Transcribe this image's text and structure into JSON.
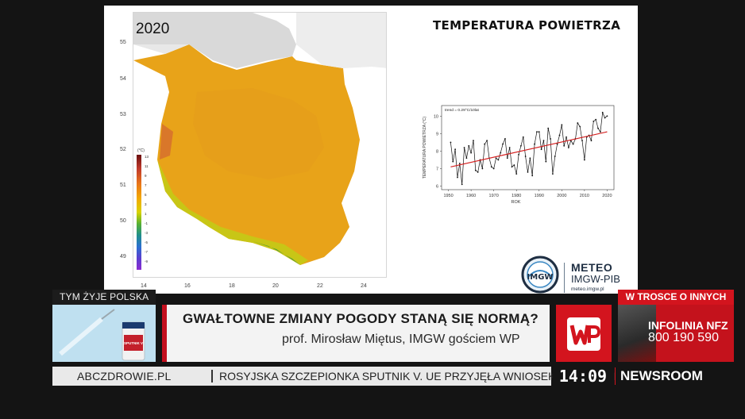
{
  "slide": {
    "title": "TEMPERATURA POWIETRZA",
    "map_year": "2020",
    "lat_labels": [
      "55",
      "54",
      "53",
      "52",
      "51",
      "50",
      "49"
    ],
    "lon_labels": [
      "14",
      "16",
      "18",
      "20",
      "22",
      "24"
    ],
    "legend_unit": "(°C)",
    "legend_ticks": [
      "13",
      "11",
      "9",
      "7",
      "5",
      "3",
      "1",
      "-1",
      "-3",
      "-5",
      "-7",
      "-9"
    ]
  },
  "chart_data": {
    "type": "line",
    "trend_label": "trend = 0.29°C/10lat",
    "xlabel": "ROK",
    "ylabel": "TEMPERATURA POWIETRZA (°C)",
    "xlim": [
      1951,
      2020
    ],
    "ylim": [
      6,
      10.5
    ],
    "xticks": [
      1950,
      1960,
      1970,
      1980,
      1990,
      2000,
      2010,
      2020
    ],
    "yticks": [
      6,
      7,
      8,
      9,
      10
    ],
    "series": [
      {
        "x": [
          1951,
          1952,
          1953,
          1954,
          1955,
          1956,
          1957,
          1958,
          1959,
          1960,
          1961,
          1962,
          1963,
          1964,
          1965,
          1966,
          1967,
          1968,
          1969,
          1970,
          1971,
          1972,
          1973,
          1974,
          1975,
          1976,
          1977,
          1978,
          1979,
          1980,
          1981,
          1982,
          1983,
          1984,
          1985,
          1986,
          1987,
          1988,
          1989,
          1990,
          1991,
          1992,
          1993,
          1994,
          1995,
          1996,
          1997,
          1998,
          1999,
          2000,
          2001,
          2002,
          2003,
          2004,
          2005,
          2006,
          2007,
          2008,
          2009,
          2010,
          2011,
          2012,
          2013,
          2014,
          2015,
          2016,
          2017,
          2018,
          2019,
          2020
        ],
        "values": [
          8.5,
          7.4,
          8.1,
          6.5,
          7.3,
          6.1,
          8.2,
          7.6,
          8.3,
          7.9,
          8.6,
          6.9,
          6.8,
          7.5,
          7.0,
          8.4,
          8.6,
          7.6,
          7.1,
          7.0,
          7.6,
          7.5,
          7.9,
          8.4,
          8.7,
          7.6,
          8.2,
          7.1,
          7.2,
          6.7,
          7.8,
          8.3,
          8.8,
          7.7,
          6.8,
          7.6,
          6.6,
          8.4,
          9.1,
          9.1,
          8.1,
          8.6,
          7.4,
          9.3,
          8.7,
          6.7,
          7.7,
          8.4,
          8.9,
          9.5,
          8.3,
          8.8,
          8.2,
          8.6,
          8.4,
          8.7,
          9.6,
          9.4,
          8.6,
          7.5,
          8.8,
          8.9,
          8.6,
          9.7,
          9.8,
          9.3,
          9.1,
          10.2,
          9.9,
          10.0
        ]
      }
    ],
    "trend_line": {
      "x": [
        1951,
        2020
      ],
      "values": [
        7.1,
        9.1
      ]
    }
  },
  "branding": {
    "meteo_title": "METEO",
    "meteo_sub": "IMGW-PIB",
    "meteo_url": "meteo.imgw.pl",
    "logo_text": "IMGW"
  },
  "lower_third": {
    "tag_left": "TYM ŻYJE POLSKA",
    "headline": "GWAŁTOWNE ZMIANY POGODY STANĄ SIĘ NORMĄ?",
    "subline": "prof. Mirosław Miętus, IMGW gościem WP",
    "tag_right": "W TROSCE O INNYCH",
    "promo_line1": "INFOLINIA NFZ",
    "promo_line2": "800 190 590",
    "ticker_source": "ABCZDROWIE.PL",
    "ticker_text": "ROSYJSKA SZCZEPIONKA SPUTNIK V. UE PRZYJĘŁA WNIOSEK O REJESTRACJĘ",
    "clock": "14:09",
    "channel": "NEWSROOM",
    "vial_label": "SPUTNIK V"
  }
}
